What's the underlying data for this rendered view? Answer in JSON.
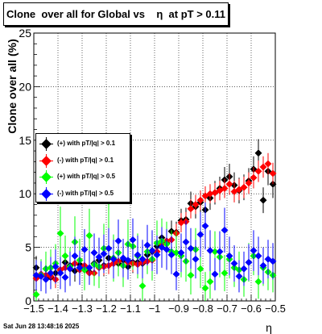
{
  "footer_text": "Sat Jun 28 13:48:16 2025",
  "chart_data": {
    "type": "scatter",
    "title": "Clone  over all for Global vs    η  at pT > 0.11",
    "xlabel": "η",
    "ylabel": "Clone  over all (%)",
    "xlim": [
      -1.5,
      -0.5
    ],
    "ylim": [
      0,
      25
    ],
    "xticks": [
      -1.5,
      -1.4,
      -1.3,
      -1.2,
      -1.1,
      -1,
      -0.9,
      -0.8,
      -0.7,
      -0.6,
      -0.5
    ],
    "xtick_labels": [
      "−1.5",
      "−1.4",
      "−1.3",
      "−1.2",
      "−1.1",
      "−1",
      "−0.9",
      "−0.8",
      "−0.7",
      "−0.6",
      "−0.5"
    ],
    "yticks": [
      0,
      5,
      10,
      15,
      20,
      25
    ],
    "grid": true,
    "legend_position": "middle-left",
    "series": [
      {
        "name": "(+) with pT/|q| > 0.1",
        "color": "#000000",
        "x": [
          -1.49,
          -1.47,
          -1.45,
          -1.43,
          -1.41,
          -1.39,
          -1.37,
          -1.35,
          -1.33,
          -1.31,
          -1.29,
          -1.27,
          -1.25,
          -1.23,
          -1.21,
          -1.19,
          -1.17,
          -1.15,
          -1.13,
          -1.11,
          -1.09,
          -1.07,
          -1.05,
          -1.03,
          -1.01,
          -0.99,
          -0.97,
          -0.95,
          -0.93,
          -0.91,
          -0.89,
          -0.87,
          -0.85,
          -0.83,
          -0.81,
          -0.79,
          -0.77,
          -0.75,
          -0.73,
          -0.71,
          -0.69,
          -0.67,
          -0.65,
          -0.63,
          -0.61,
          -0.59,
          -0.57,
          -0.55,
          -0.53,
          -0.51
        ],
        "y": [
          3.1,
          2.3,
          3.0,
          2.2,
          2.6,
          2.9,
          3.6,
          3.3,
          2.8,
          3.4,
          2.9,
          2.7,
          3.5,
          3.8,
          3.3,
          4.0,
          3.5,
          3.5,
          3.8,
          3.2,
          3.6,
          3.6,
          3.5,
          4.3,
          4.6,
          5.1,
          5.9,
          5.4,
          6.5,
          6.4,
          7.5,
          7.6,
          9.1,
          8.8,
          9.2,
          8.5,
          9.6,
          10.1,
          10.5,
          11.3,
          11.6,
          10.8,
          10.3,
          10.6,
          11.2,
          12.3,
          13.8,
          9.4,
          12.1,
          10.9
        ],
        "err": [
          1.1,
          1.0,
          1.0,
          0.9,
          1.0,
          1.0,
          1.0,
          1.0,
          1.0,
          1.0,
          1.0,
          1.0,
          1.0,
          1.0,
          1.0,
          1.0,
          1.0,
          1.0,
          1.0,
          1.0,
          1.0,
          1.0,
          1.0,
          1.0,
          1.0,
          1.0,
          1.0,
          1.0,
          1.0,
          1.0,
          1.1,
          1.1,
          1.1,
          1.1,
          1.1,
          1.1,
          1.1,
          1.1,
          1.1,
          1.2,
          1.2,
          1.2,
          1.2,
          1.2,
          1.2,
          1.2,
          1.3,
          1.2,
          1.3,
          1.3
        ]
      },
      {
        "name": "(-) with pT/|q| > 0.1",
        "color": "#ff0000",
        "x": [
          -1.49,
          -1.47,
          -1.45,
          -1.43,
          -1.41,
          -1.39,
          -1.37,
          -1.35,
          -1.33,
          -1.31,
          -1.29,
          -1.27,
          -1.25,
          -1.23,
          -1.21,
          -1.19,
          -1.17,
          -1.15,
          -1.13,
          -1.11,
          -1.09,
          -1.07,
          -1.05,
          -1.03,
          -1.01,
          -0.99,
          -0.97,
          -0.95,
          -0.93,
          -0.91,
          -0.89,
          -0.87,
          -0.85,
          -0.83,
          -0.81,
          -0.79,
          -0.77,
          -0.75,
          -0.73,
          -0.71,
          -0.69,
          -0.67,
          -0.65,
          -0.63,
          -0.61,
          -0.59,
          -0.57,
          -0.55,
          -0.53,
          -0.51
        ],
        "y": [
          2.1,
          2.5,
          2.4,
          2.3,
          2.0,
          2.9,
          3.1,
          3.0,
          3.5,
          2.9,
          3.3,
          2.6,
          2.6,
          3.1,
          3.2,
          3.3,
          3.5,
          3.7,
          3.3,
          3.6,
          3.5,
          3.4,
          3.6,
          3.7,
          3.8,
          4.6,
          5.3,
          5.6,
          5.7,
          6.3,
          7.3,
          7.4,
          8.6,
          9.0,
          9.4,
          9.8,
          10.0,
          10.1,
          10.3,
          10.5,
          10.9,
          10.2,
          10.4,
          10.6,
          11.0,
          11.5,
          12.1,
          12.5,
          12.8,
          11.9
        ],
        "err": [
          0.8,
          0.8,
          0.8,
          0.8,
          0.8,
          0.8,
          0.8,
          0.8,
          0.8,
          0.8,
          0.8,
          0.8,
          0.8,
          0.8,
          0.8,
          0.8,
          0.8,
          0.8,
          0.8,
          0.8,
          0.8,
          0.8,
          0.8,
          0.8,
          0.8,
          0.8,
          0.9,
          0.9,
          0.9,
          0.9,
          0.9,
          0.9,
          0.9,
          0.9,
          0.9,
          0.9,
          0.9,
          0.9,
          0.9,
          0.9,
          1.0,
          1.0,
          1.0,
          1.0,
          1.0,
          1.0,
          1.0,
          1.0,
          1.0,
          1.0
        ]
      },
      {
        "name": "(+) with pT/|q| > 0.5",
        "color": "#00ff00",
        "x": [
          -1.49,
          -1.47,
          -1.45,
          -1.43,
          -1.41,
          -1.39,
          -1.37,
          -1.35,
          -1.33,
          -1.31,
          -1.29,
          -1.27,
          -1.25,
          -1.23,
          -1.21,
          -1.19,
          -1.17,
          -1.15,
          -1.13,
          -1.11,
          -1.09,
          -1.07,
          -1.05,
          -1.03,
          -1.01,
          -0.99,
          -0.97,
          -0.95,
          -0.93,
          -0.91,
          -0.89,
          -0.87,
          -0.85,
          -0.83,
          -0.81,
          -0.79,
          -0.77,
          -0.75,
          -0.73,
          -0.71,
          -0.69,
          -0.67,
          -0.65,
          -0.63,
          -0.61,
          -0.59,
          -0.57,
          -0.55,
          -0.53,
          -0.51
        ],
        "y": [
          0.6,
          2.4,
          3.0,
          3.1,
          3.5,
          6.3,
          4.2,
          3.2,
          5.5,
          3.8,
          2.9,
          6.1,
          3.4,
          3.2,
          4.9,
          9.3,
          4.0,
          4.5,
          3.3,
          5.3,
          5.1,
          4.2,
          1.4,
          4.6,
          3.9,
          5.4,
          5.6,
          5.3,
          4.6,
          4.5,
          4.2,
          3.7,
          2.4,
          4.8,
          3.0,
          1.2,
          1.8,
          4.6,
          4.1,
          2.6,
          3.9,
          3.1,
          2.9,
          2.0,
          3.6,
          4.2,
          1.8,
          3.1,
          2.7,
          2.4
        ],
        "err": [
          1.4,
          1.5,
          1.6,
          1.7,
          1.8,
          2.5,
          1.9,
          1.8,
          2.4,
          2.0,
          1.9,
          2.5,
          2.0,
          2.0,
          2.3,
          3.2,
          2.2,
          2.2,
          2.0,
          2.3,
          2.2,
          2.1,
          1.6,
          2.1,
          2.0,
          2.1,
          2.1,
          2.1,
          2.0,
          2.0,
          2.0,
          1.9,
          1.8,
          2.0,
          1.8,
          1.5,
          1.6,
          1.9,
          1.9,
          1.7,
          1.8,
          1.8,
          1.7,
          1.6,
          1.8,
          1.8,
          1.6,
          1.7,
          1.7,
          1.6
        ]
      },
      {
        "name": "(-) with pT/|q| > 0.5",
        "color": "#0000ff",
        "x": [
          -1.49,
          -1.47,
          -1.45,
          -1.43,
          -1.41,
          -1.39,
          -1.37,
          -1.35,
          -1.33,
          -1.31,
          -1.29,
          -1.27,
          -1.25,
          -1.23,
          -1.21,
          -1.19,
          -1.17,
          -1.15,
          -1.13,
          -1.11,
          -1.09,
          -1.07,
          -1.05,
          -1.03,
          -1.01,
          -0.99,
          -0.97,
          -0.95,
          -0.93,
          -0.91,
          -0.89,
          -0.87,
          -0.85,
          -0.83,
          -0.81,
          -0.79,
          -0.77,
          -0.75,
          -0.73,
          -0.71,
          -0.69,
          -0.67,
          -0.65,
          -0.63,
          -0.61,
          -0.59,
          -0.57,
          -0.55,
          -0.53,
          -0.51
        ],
        "y": [
          2.4,
          2.3,
          2.0,
          2.6,
          3.2,
          2.6,
          2.2,
          3.0,
          4.2,
          3.1,
          4.8,
          3.1,
          4.5,
          4.1,
          4.4,
          4.9,
          3.9,
          5.6,
          4.0,
          3.8,
          5.7,
          4.3,
          3.9,
          5.2,
          4.7,
          4.3,
          5.0,
          4.8,
          4.3,
          2.5,
          4.5,
          5.5,
          4.9,
          3.9,
          6.2,
          7.0,
          4.7,
          2.5,
          4.6,
          6.6,
          4.2,
          3.5,
          2.3,
          3.0,
          3.6,
          4.7,
          4.2,
          3.3,
          3.9,
          3.7
        ],
        "err": [
          1.4,
          1.4,
          1.3,
          1.5,
          1.6,
          1.5,
          1.4,
          1.6,
          1.8,
          1.6,
          1.9,
          1.6,
          1.8,
          1.8,
          1.8,
          1.9,
          1.8,
          2.0,
          1.8,
          1.8,
          2.0,
          1.8,
          1.8,
          1.9,
          1.9,
          1.8,
          1.9,
          1.9,
          1.8,
          1.5,
          1.8,
          2.0,
          1.9,
          1.8,
          2.1,
          2.2,
          1.9,
          1.5,
          1.9,
          2.1,
          1.8,
          1.7,
          1.5,
          1.6,
          1.7,
          1.9,
          1.8,
          1.7,
          1.8,
          1.7
        ]
      }
    ]
  }
}
